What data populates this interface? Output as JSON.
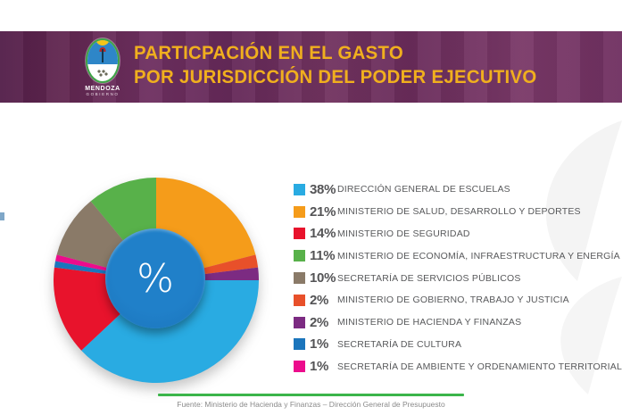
{
  "header": {
    "title_line1": "PARTICPACIÓN EN EL GASTO",
    "title_line2": "POR JURISDICCIÓN DEL PODER EJECUTIVO",
    "logo": {
      "org": "MENDOZA",
      "sub": "GOBIERNO"
    },
    "title_color": "#F0AF1E",
    "background_color": "#6A2C5B"
  },
  "chart_data": {
    "type": "pie",
    "donut": true,
    "center_label": "%",
    "center_circle_color": "#1B74BB",
    "legend_position": "right",
    "title": "Particpación en el gasto por jurisdicción del Poder Ejecutivo",
    "slices": [
      {
        "pct_label": "38%",
        "value": 38,
        "label": "DIRECCIÓN GENERAL DE ESCUELAS",
        "color": "#29ABE2"
      },
      {
        "pct_label": "21%",
        "value": 21,
        "label": "MINISTERIO DE SALUD, DESARROLLO Y DEPORTES",
        "color": "#F59C1A"
      },
      {
        "pct_label": "14%",
        "value": 14,
        "label": "MINISTERIO DE SEGURIDAD",
        "color": "#E8132C"
      },
      {
        "pct_label": "11%",
        "value": 11,
        "label": "MINISTERIO DE ECONOMÍA, INFRAESTRUCTURA Y ENERGÍA",
        "color": "#58B14A"
      },
      {
        "pct_label": "10%",
        "value": 10,
        "label": "SECRETARÍA DE SERVICIOS PÚBLICOS",
        "color": "#8A7A68"
      },
      {
        "pct_label": "2%",
        "value": 2,
        "label": "MINISTERIO DE GOBIERNO, TRABAJO Y JUSTICIA",
        "color": "#E8502A"
      },
      {
        "pct_label": "2%",
        "value": 2,
        "label": "MINISTERIO DE HACIENDA Y FINANZAS",
        "color": "#7C2B82"
      },
      {
        "pct_label": "1%",
        "value": 1,
        "label": "SECRETARÍA DE CULTURA",
        "color": "#1B75BC"
      },
      {
        "pct_label": "1%",
        "value": 1,
        "label": "SECRETARÍA DE AMBIENTE Y ORDENAMIENTO TERRITORIAL",
        "color": "#EC0C8C"
      }
    ],
    "draw_order": [
      1,
      5,
      6,
      0,
      2,
      7,
      8,
      4,
      3
    ],
    "start_angle_deg": 0,
    "direction": "clockwise"
  },
  "footer": {
    "source": "Fuente: Ministerio de Hacienda y Finanzas – Dirección General de Presupuesto",
    "rule_color": "#3BB54A"
  }
}
